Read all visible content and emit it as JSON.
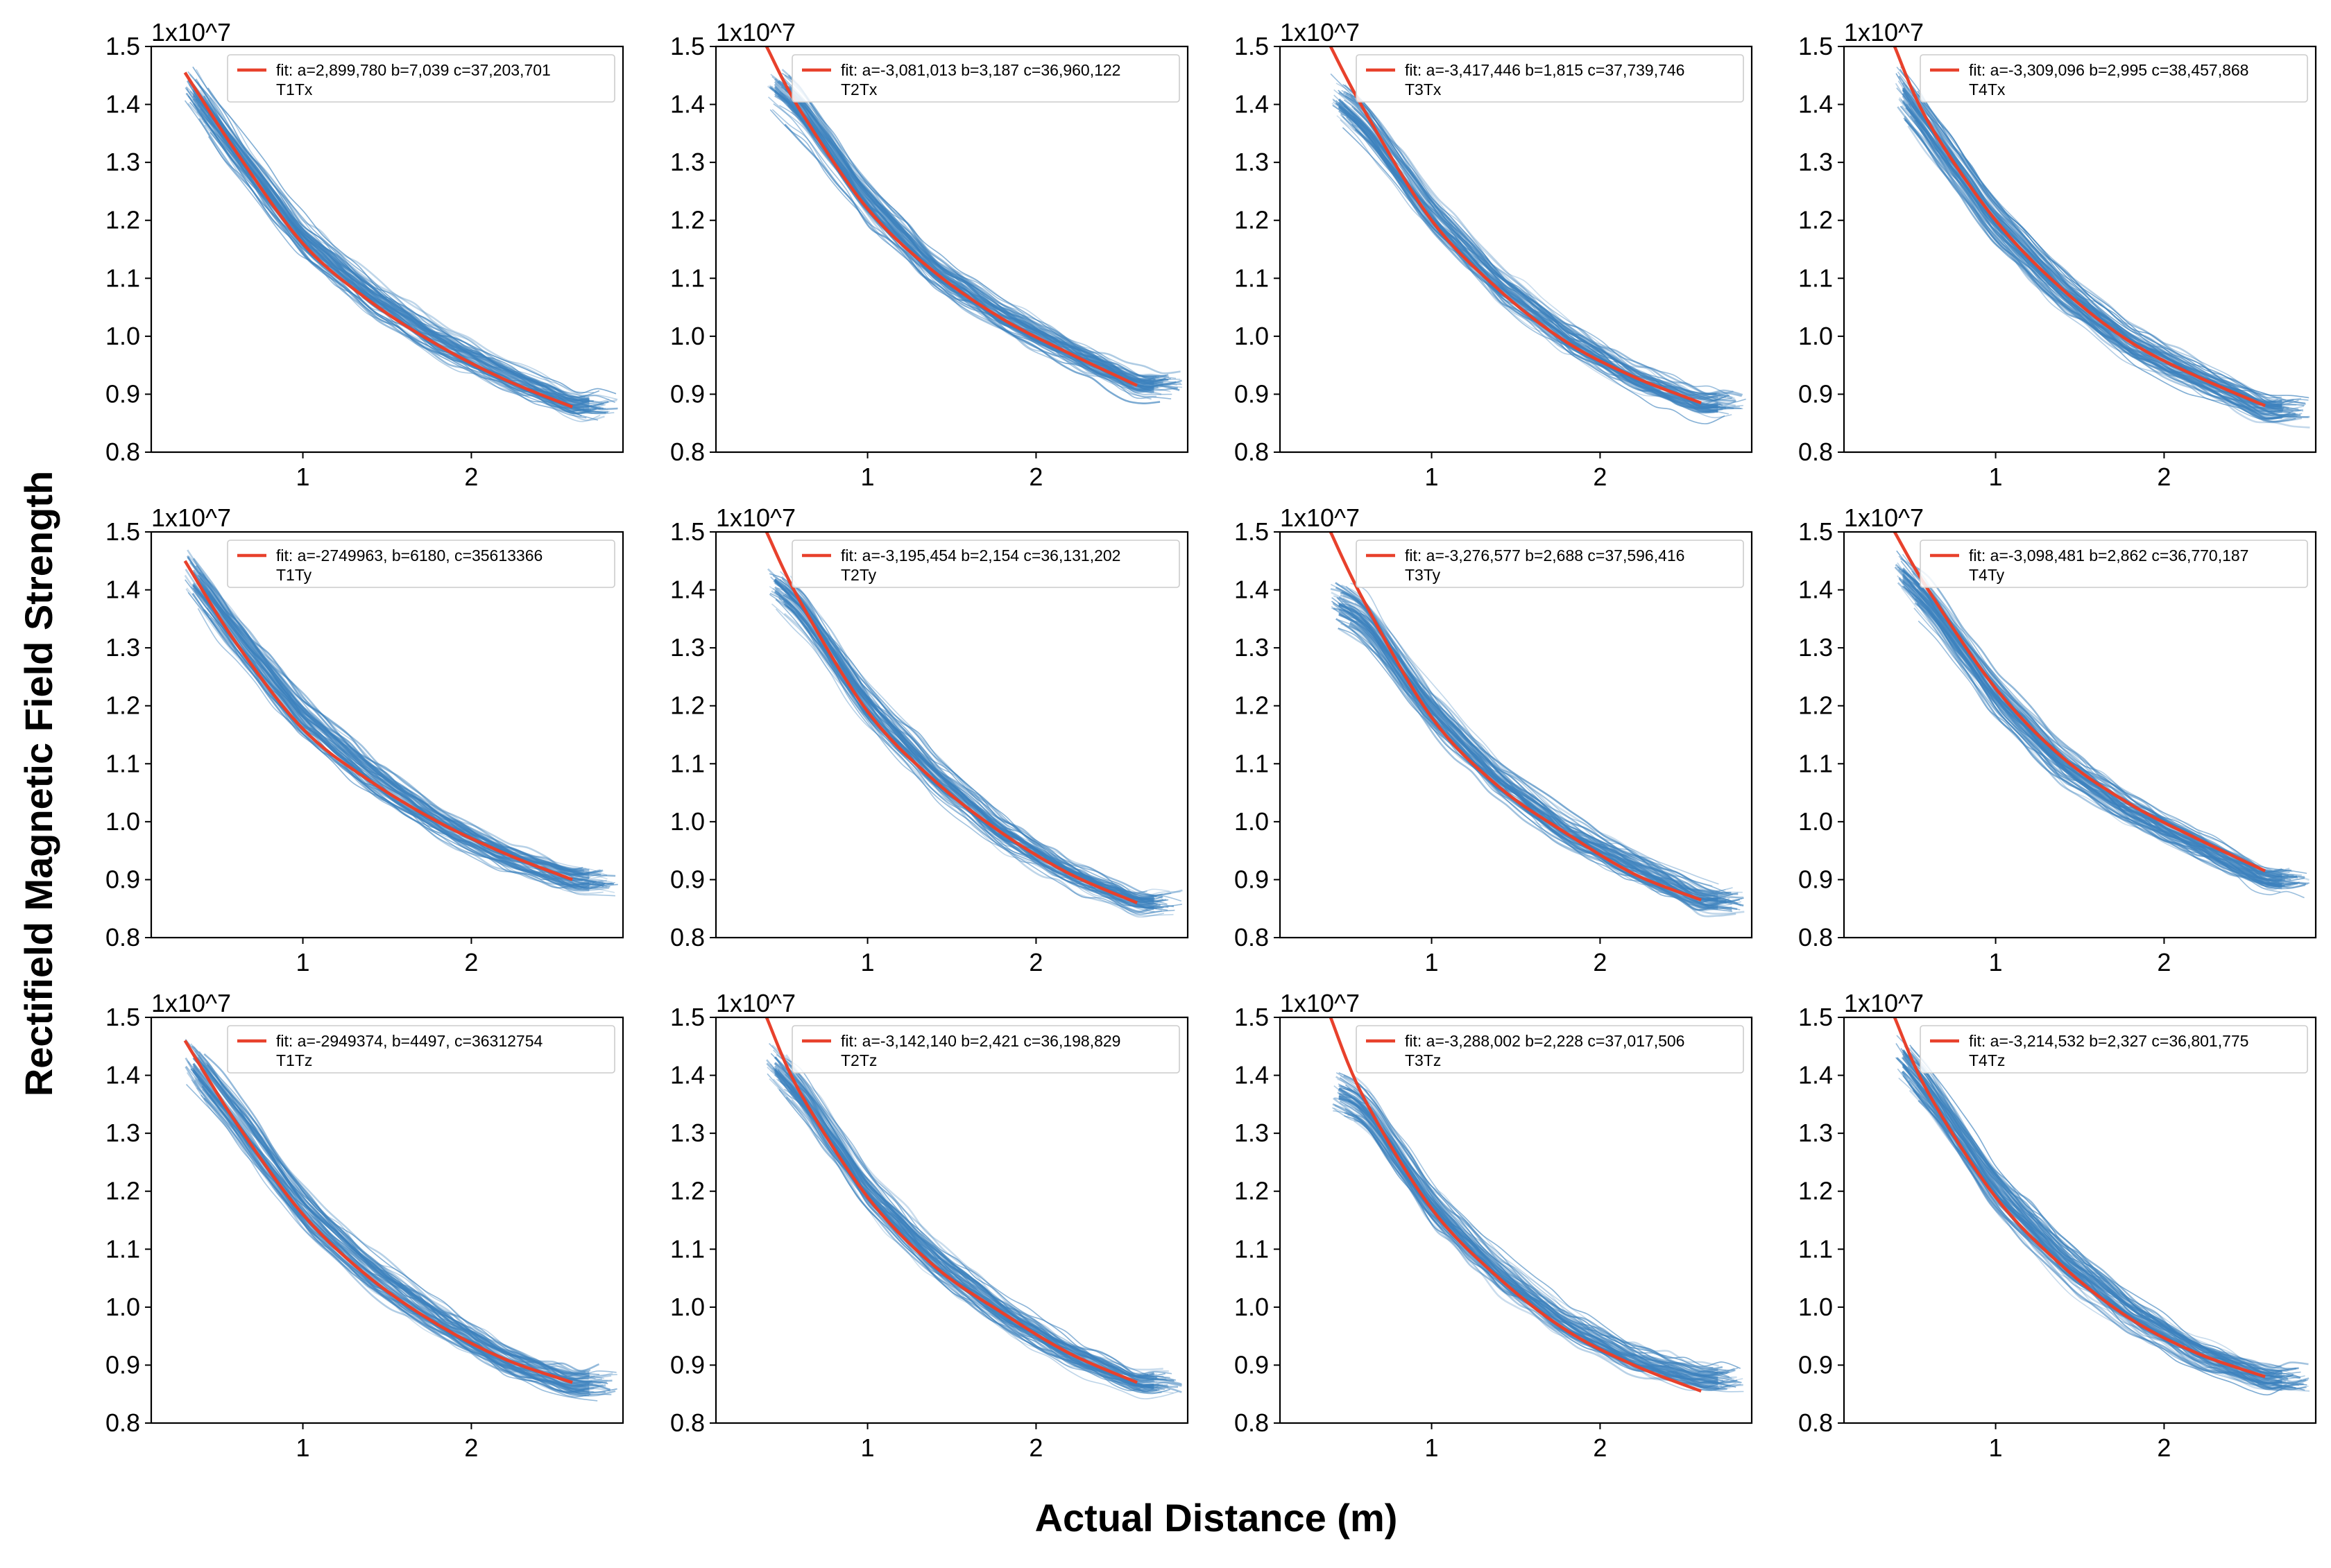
{
  "figure": {
    "ylabel": "Rectifield Magnetic Field Strength",
    "xlabel": "Actual Distance (m)"
  },
  "colors": {
    "fit": "#e8412c",
    "data": "#3d82bd",
    "axes": "#000000"
  },
  "chart_data": [
    {
      "type": "line",
      "title": "",
      "legend": [
        "fit: a=2,899,780 b=7,039 c=37,203,701",
        "T1Tx"
      ],
      "scale_label": "1x10^7",
      "xlim": [
        0.1,
        2.9
      ],
      "ylim": [
        0.8,
        1.5
      ],
      "x_ticks": [
        "1",
        "2"
      ],
      "y_ticks": [
        "0.8",
        "0.9",
        "1.0",
        "1.1",
        "1.2",
        "1.3",
        "1.4",
        "1.5"
      ],
      "fit": {
        "a": 2899780,
        "b": 7039,
        "c": 37203701
      },
      "series": [
        {
          "name": "fit",
          "x": [
            0.3,
            0.6,
            1.0,
            1.4,
            1.8,
            2.2,
            2.6
          ],
          "y": [
            1.455,
            1.32,
            1.16,
            1.06,
            0.985,
            0.925,
            0.878
          ]
        },
        {
          "name": "T1Tx measurements",
          "x": [
            0.3,
            0.6,
            1.0,
            1.4,
            1.8,
            2.2,
            2.6
          ],
          "y": [
            1.44,
            1.32,
            1.17,
            1.07,
            0.99,
            0.93,
            0.88
          ]
        }
      ]
    },
    {
      "type": "line",
      "title": "",
      "legend": [
        "fit: a=-3,081,013 b=3,187 c=36,960,122",
        "T2Tx"
      ],
      "scale_label": "1x10^7",
      "xlim": [
        0.1,
        2.9
      ],
      "ylim": [
        0.8,
        1.5
      ],
      "x_ticks": [
        "1",
        "2"
      ],
      "y_ticks": [
        "0.8",
        "0.9",
        "1.0",
        "1.1",
        "1.2",
        "1.3",
        "1.4",
        "1.5"
      ],
      "fit": {
        "a": -3081013,
        "b": 3187,
        "c": 36960122
      },
      "series": [
        {
          "name": "fit",
          "x": [
            0.4,
            0.6,
            1.0,
            1.4,
            1.8,
            2.2,
            2.6
          ],
          "y": [
            1.5,
            1.39,
            1.22,
            1.11,
            1.03,
            0.97,
            0.915
          ]
        },
        {
          "name": "T2Tx measurements",
          "x": [
            0.4,
            0.6,
            1.0,
            1.4,
            1.8,
            2.2,
            2.6
          ],
          "y": [
            1.44,
            1.39,
            1.23,
            1.11,
            1.03,
            0.97,
            0.915
          ]
        }
      ]
    },
    {
      "type": "line",
      "title": "",
      "legend": [
        "fit: a=-3,417,446 b=1,815 c=37,739,746",
        "T3Tx"
      ],
      "scale_label": "1x10^7",
      "xlim": [
        0.1,
        2.9
      ],
      "ylim": [
        0.8,
        1.5
      ],
      "x_ticks": [
        "1",
        "2"
      ],
      "y_ticks": [
        "0.8",
        "0.9",
        "1.0",
        "1.1",
        "1.2",
        "1.3",
        "1.4",
        "1.5"
      ],
      "fit": {
        "a": -3417446,
        "b": 1815,
        "c": 37739746
      },
      "series": [
        {
          "name": "fit",
          "x": [
            0.4,
            0.6,
            1.0,
            1.4,
            1.8,
            2.2,
            2.6
          ],
          "y": [
            1.5,
            1.39,
            1.2,
            1.08,
            0.99,
            0.93,
            0.885
          ]
        },
        {
          "name": "T3Tx measurements",
          "x": [
            0.4,
            0.6,
            1.0,
            1.4,
            1.8,
            2.2,
            2.6
          ],
          "y": [
            1.42,
            1.37,
            1.21,
            1.09,
            1.0,
            0.93,
            0.885
          ]
        }
      ]
    },
    {
      "type": "line",
      "title": "",
      "legend": [
        "fit: a=-3,309,096 b=2,995 c=38,457,868",
        "T4Tx"
      ],
      "scale_label": "1x10^7",
      "xlim": [
        0.1,
        2.9
      ],
      "ylim": [
        0.8,
        1.5
      ],
      "x_ticks": [
        "1",
        "2"
      ],
      "y_ticks": [
        "0.8",
        "0.9",
        "1.0",
        "1.1",
        "1.2",
        "1.3",
        "1.4",
        "1.5"
      ],
      "fit": {
        "a": -3309096,
        "b": 2995,
        "c": 38457868
      },
      "series": [
        {
          "name": "fit",
          "x": [
            0.4,
            0.6,
            1.0,
            1.4,
            1.8,
            2.2,
            2.6
          ],
          "y": [
            1.5,
            1.37,
            1.2,
            1.08,
            0.99,
            0.93,
            0.88
          ]
        },
        {
          "name": "T4Tx measurements",
          "x": [
            0.4,
            0.6,
            1.0,
            1.4,
            1.8,
            2.2,
            2.6
          ],
          "y": [
            1.44,
            1.36,
            1.2,
            1.08,
            0.99,
            0.93,
            0.875
          ]
        }
      ]
    },
    {
      "type": "line",
      "title": "",
      "legend": [
        "fit: a=-2749963, b=6180, c=35613366",
        "T1Ty"
      ],
      "scale_label": "1x10^7",
      "xlim": [
        0.1,
        2.9
      ],
      "ylim": [
        0.8,
        1.5
      ],
      "x_ticks": [
        "1",
        "2"
      ],
      "y_ticks": [
        "0.8",
        "0.9",
        "1.0",
        "1.1",
        "1.2",
        "1.3",
        "1.4",
        "1.5"
      ],
      "fit": {
        "a": -2749963,
        "b": 6180,
        "c": 35613366
      },
      "series": [
        {
          "name": "fit",
          "x": [
            0.3,
            0.6,
            1.0,
            1.4,
            1.8,
            2.2,
            2.6
          ],
          "y": [
            1.45,
            1.31,
            1.16,
            1.07,
            1.0,
            0.945,
            0.9
          ]
        },
        {
          "name": "T1Ty measurements",
          "x": [
            0.3,
            0.6,
            1.0,
            1.4,
            1.8,
            2.2,
            2.6
          ],
          "y": [
            1.44,
            1.32,
            1.18,
            1.08,
            1.0,
            0.94,
            0.9
          ]
        }
      ]
    },
    {
      "type": "line",
      "title": "",
      "legend": [
        "fit: a=-3,195,454 b=2,154 c=36,131,202",
        "T2Ty"
      ],
      "scale_label": "1x10^7",
      "xlim": [
        0.1,
        2.9
      ],
      "ylim": [
        0.8,
        1.5
      ],
      "x_ticks": [
        "1",
        "2"
      ],
      "y_ticks": [
        "0.8",
        "0.9",
        "1.0",
        "1.1",
        "1.2",
        "1.3",
        "1.4",
        "1.5"
      ],
      "fit": {
        "a": -3195454,
        "b": 2154,
        "c": 36131202
      },
      "series": [
        {
          "name": "fit",
          "x": [
            0.4,
            0.6,
            1.0,
            1.4,
            1.8,
            2.2,
            2.6
          ],
          "y": [
            1.5,
            1.38,
            1.19,
            1.07,
            0.98,
            0.91,
            0.86
          ]
        },
        {
          "name": "T2Ty measurements",
          "x": [
            0.4,
            0.6,
            1.0,
            1.4,
            1.8,
            2.2,
            2.6
          ],
          "y": [
            1.42,
            1.37,
            1.2,
            1.08,
            0.98,
            0.91,
            0.86
          ]
        }
      ]
    },
    {
      "type": "line",
      "title": "",
      "legend": [
        "fit: a=-3,276,577 b=2,688 c=37,596,416",
        "T3Ty"
      ],
      "scale_label": "1x10^7",
      "xlim": [
        0.1,
        2.9
      ],
      "ylim": [
        0.8,
        1.5
      ],
      "x_ticks": [
        "1",
        "2"
      ],
      "y_ticks": [
        "0.8",
        "0.9",
        "1.0",
        "1.1",
        "1.2",
        "1.3",
        "1.4",
        "1.5"
      ],
      "fit": {
        "a": -3276577,
        "b": 2688,
        "c": 37596416
      },
      "series": [
        {
          "name": "fit",
          "x": [
            0.4,
            0.6,
            1.0,
            1.4,
            1.8,
            2.2,
            2.6
          ],
          "y": [
            1.5,
            1.38,
            1.18,
            1.06,
            0.98,
            0.91,
            0.865
          ]
        },
        {
          "name": "T3Ty measurements",
          "x": [
            0.4,
            0.6,
            1.0,
            1.4,
            1.8,
            2.2,
            2.6
          ],
          "y": [
            1.38,
            1.35,
            1.19,
            1.07,
            0.98,
            0.92,
            0.865
          ]
        }
      ]
    },
    {
      "type": "line",
      "title": "",
      "legend": [
        "fit: a=-3,098,481 b=2,862 c=36,770,187",
        "T4Ty"
      ],
      "scale_label": "1x10^7",
      "xlim": [
        0.1,
        2.9
      ],
      "ylim": [
        0.8,
        1.5
      ],
      "x_ticks": [
        "1",
        "2"
      ],
      "y_ticks": [
        "0.8",
        "0.9",
        "1.0",
        "1.1",
        "1.2",
        "1.3",
        "1.4",
        "1.5"
      ],
      "fit": {
        "a": -3098481,
        "b": 2862,
        "c": 36770187
      },
      "series": [
        {
          "name": "fit",
          "x": [
            0.4,
            0.6,
            1.0,
            1.4,
            1.8,
            2.2,
            2.6
          ],
          "y": [
            1.5,
            1.4,
            1.23,
            1.11,
            1.03,
            0.97,
            0.915
          ]
        },
        {
          "name": "T4Ty measurements",
          "x": [
            0.4,
            0.6,
            1.0,
            1.4,
            1.8,
            2.2,
            2.6
          ],
          "y": [
            1.44,
            1.38,
            1.22,
            1.1,
            1.02,
            0.96,
            0.9
          ]
        }
      ]
    },
    {
      "type": "line",
      "title": "",
      "legend": [
        "fit: a=-2949374, b=4497, c=36312754",
        "T1Tz"
      ],
      "scale_label": "1x10^7",
      "xlim": [
        0.1,
        2.9
      ],
      "ylim": [
        0.8,
        1.5
      ],
      "x_ticks": [
        "1",
        "2"
      ],
      "y_ticks": [
        "0.8",
        "0.9",
        "1.0",
        "1.1",
        "1.2",
        "1.3",
        "1.4",
        "1.5"
      ],
      "fit": {
        "a": -2949374,
        "b": 4497,
        "c": 36312754
      },
      "series": [
        {
          "name": "fit",
          "x": [
            0.3,
            0.6,
            1.0,
            1.4,
            1.8,
            2.2,
            2.6
          ],
          "y": [
            1.46,
            1.32,
            1.16,
            1.05,
            0.97,
            0.91,
            0.87
          ]
        },
        {
          "name": "T1Tz measurements",
          "x": [
            0.3,
            0.6,
            1.0,
            1.4,
            1.8,
            2.2,
            2.6
          ],
          "y": [
            1.44,
            1.33,
            1.17,
            1.06,
            0.98,
            0.91,
            0.87
          ]
        }
      ]
    },
    {
      "type": "line",
      "title": "",
      "legend": [
        "fit: a=-3,142,140 b=2,421 c=36,198,829",
        "T2Tz"
      ],
      "scale_label": "1x10^7",
      "xlim": [
        0.1,
        2.9
      ],
      "ylim": [
        0.8,
        1.5
      ],
      "x_ticks": [
        "1",
        "2"
      ],
      "y_ticks": [
        "0.8",
        "0.9",
        "1.0",
        "1.1",
        "1.2",
        "1.3",
        "1.4",
        "1.5"
      ],
      "fit": {
        "a": -3142140,
        "b": 2421,
        "c": 36198829
      },
      "series": [
        {
          "name": "fit",
          "x": [
            0.4,
            0.6,
            1.0,
            1.4,
            1.8,
            2.2,
            2.6
          ],
          "y": [
            1.5,
            1.37,
            1.19,
            1.07,
            0.99,
            0.92,
            0.87
          ]
        },
        {
          "name": "T2Tz measurements",
          "x": [
            0.4,
            0.6,
            1.0,
            1.4,
            1.8,
            2.2,
            2.6
          ],
          "y": [
            1.43,
            1.37,
            1.2,
            1.08,
            0.99,
            0.92,
            0.87
          ]
        }
      ]
    },
    {
      "type": "line",
      "title": "",
      "legend": [
        "fit: a=-3,288,002 b=2,228 c=37,017,506",
        "T3Tz"
      ],
      "scale_label": "1x10^7",
      "xlim": [
        0.1,
        2.9
      ],
      "ylim": [
        0.8,
        1.5
      ],
      "x_ticks": [
        "1",
        "2"
      ],
      "y_ticks": [
        "0.8",
        "0.9",
        "1.0",
        "1.1",
        "1.2",
        "1.3",
        "1.4",
        "1.5"
      ],
      "fit": {
        "a": -3288002,
        "b": 2228,
        "c": 37017506
      },
      "series": [
        {
          "name": "fit",
          "x": [
            0.4,
            0.6,
            1.0,
            1.4,
            1.8,
            2.2,
            2.6
          ],
          "y": [
            1.5,
            1.36,
            1.17,
            1.05,
            0.96,
            0.9,
            0.855
          ]
        },
        {
          "name": "T3Tz measurements",
          "x": [
            0.4,
            0.6,
            1.0,
            1.4,
            1.8,
            2.2,
            2.6
          ],
          "y": [
            1.38,
            1.35,
            1.18,
            1.06,
            0.97,
            0.91,
            0.88
          ]
        }
      ]
    },
    {
      "type": "line",
      "title": "",
      "legend": [
        "fit: a=-3,214,532 b=2,327 c=36,801,775",
        "T4Tz"
      ],
      "scale_label": "1x10^7",
      "xlim": [
        0.1,
        2.9
      ],
      "ylim": [
        0.8,
        1.5
      ],
      "x_ticks": [
        "1",
        "2"
      ],
      "y_ticks": [
        "0.8",
        "0.9",
        "1.0",
        "1.1",
        "1.2",
        "1.3",
        "1.4",
        "1.5"
      ],
      "fit": {
        "a": -3214532,
        "b": 2327,
        "c": 36801775
      },
      "series": [
        {
          "name": "fit",
          "x": [
            0.4,
            0.6,
            1.0,
            1.4,
            1.8,
            2.2,
            2.6
          ],
          "y": [
            1.5,
            1.37,
            1.19,
            1.07,
            0.98,
            0.92,
            0.88
          ]
        },
        {
          "name": "T4Tz measurements",
          "x": [
            0.4,
            0.6,
            1.0,
            1.4,
            1.8,
            2.2,
            2.6
          ],
          "y": [
            1.44,
            1.37,
            1.2,
            1.08,
            0.99,
            0.92,
            0.875
          ]
        }
      ]
    }
  ]
}
